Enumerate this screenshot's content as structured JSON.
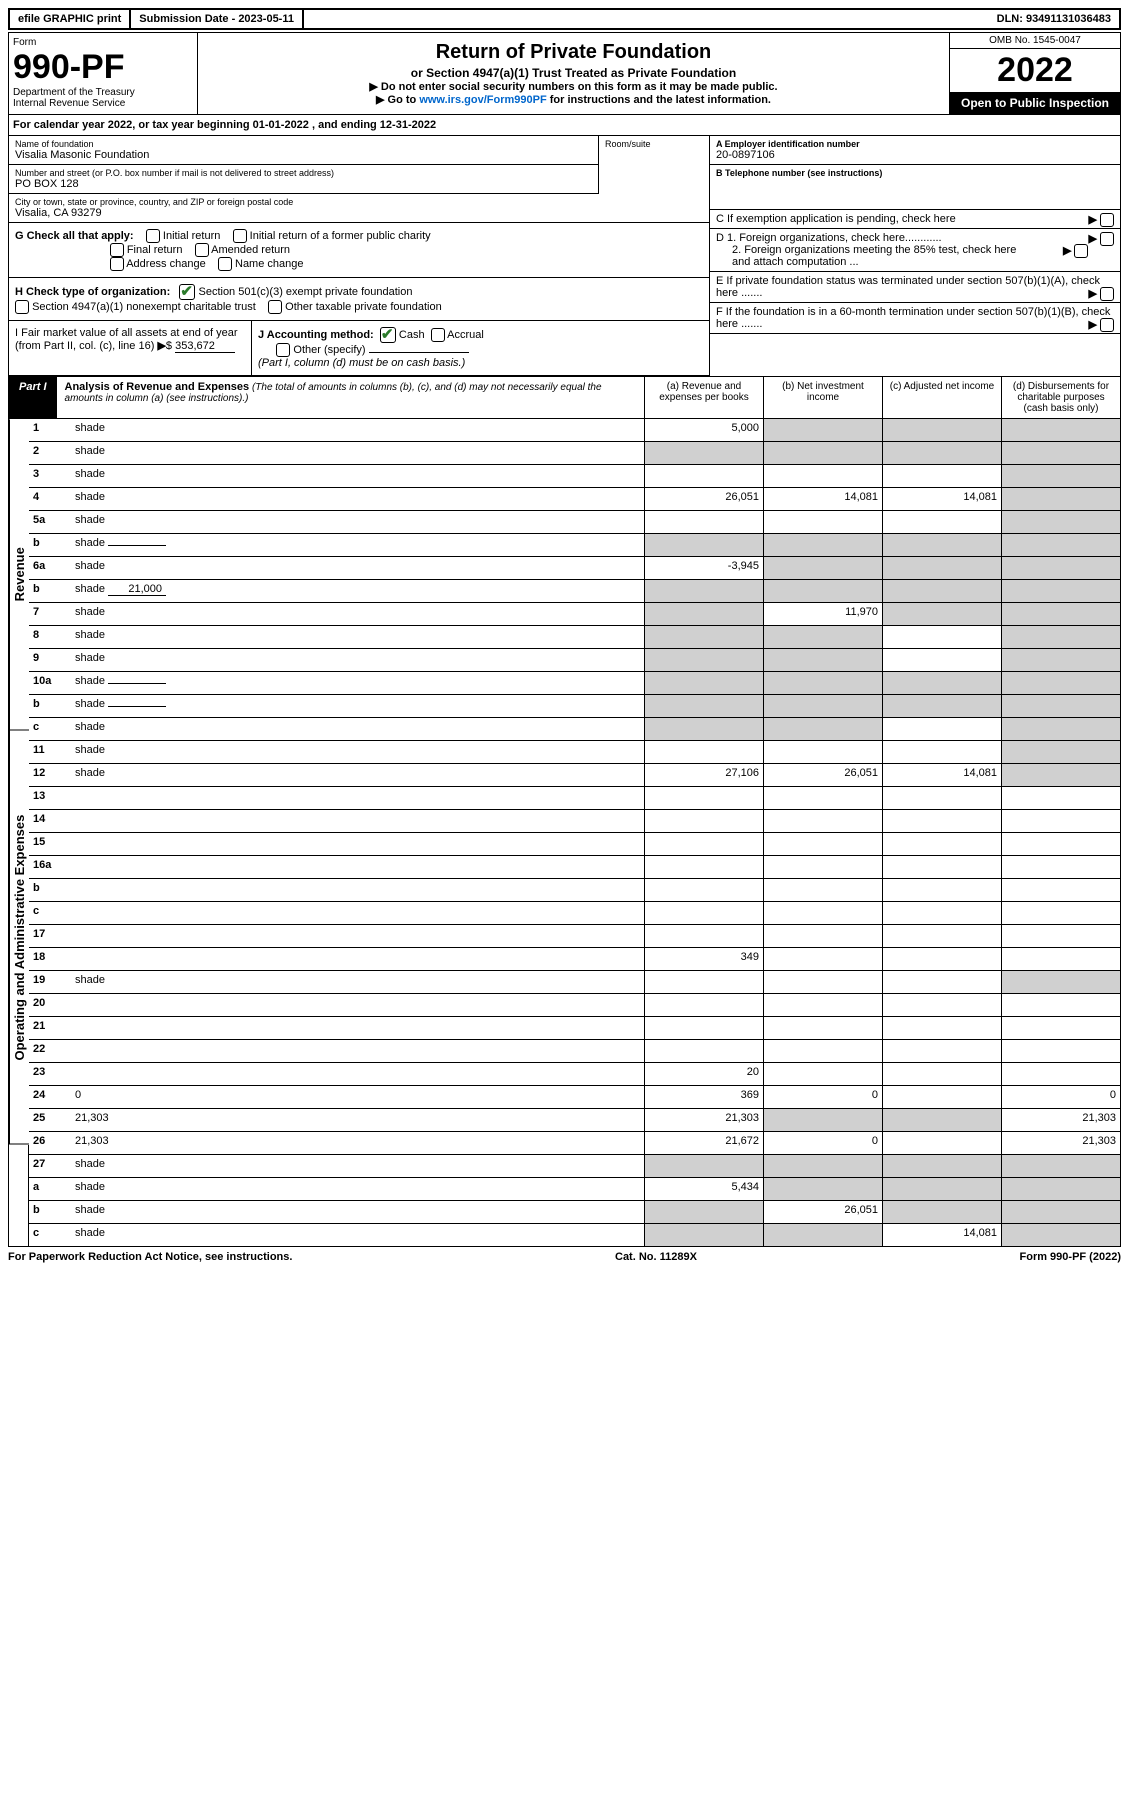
{
  "topbar": {
    "efile": "efile GRAPHIC print",
    "submission": "Submission Date - 2023-05-11",
    "dln": "DLN: 93491131036483"
  },
  "header": {
    "form_label": "Form",
    "form_num": "990-PF",
    "dept": "Department of the Treasury",
    "irs": "Internal Revenue Service",
    "title": "Return of Private Foundation",
    "subtitle": "or Section 4947(a)(1) Trust Treated as Private Foundation",
    "instr1": "▶ Do not enter social security numbers on this form as it may be made public.",
    "instr2": "▶ Go to www.irs.gov/Form990PF for instructions and the latest information.",
    "link": "www.irs.gov/Form990PF",
    "omb": "OMB No. 1545-0047",
    "year": "2022",
    "inspect": "Open to Public Inspection"
  },
  "calyear": "For calendar year 2022, or tax year beginning 01-01-2022                        , and ending 12-31-2022",
  "info": {
    "name_label": "Name of foundation",
    "name": "Visalia Masonic Foundation",
    "addr_label": "Number and street (or P.O. box number if mail is not delivered to street address)",
    "addr": "PO BOX 128",
    "room_label": "Room/suite",
    "city_label": "City or town, state or province, country, and ZIP or foreign postal code",
    "city": "Visalia, CA  93279",
    "a_label": "A Employer identification number",
    "a_val": "20-0897106",
    "b_label": "B Telephone number (see instructions)",
    "c_label": "C If exemption application is pending, check here",
    "d1_label": "D 1. Foreign organizations, check here............",
    "d2_label": "2. Foreign organizations meeting the 85% test, check here and attach computation ...",
    "e_label": "E  If private foundation status was terminated under section 507(b)(1)(A), check here .......",
    "f_label": "F  If the foundation is in a 60-month termination under section 507(b)(1)(B), check here .......",
    "g_label": "G Check all that apply:",
    "g_opts": [
      "Initial return",
      "Initial return of a former public charity",
      "Final return",
      "Amended return",
      "Address change",
      "Name change"
    ],
    "h_label": "H Check type of organization:",
    "h_opt1": "Section 501(c)(3) exempt private foundation",
    "h_opt2": "Section 4947(a)(1) nonexempt charitable trust",
    "h_opt3": "Other taxable private foundation",
    "i_label": "I Fair market value of all assets at end of year (from Part II, col. (c), line 16)",
    "i_val": "353,672",
    "j_label": "J Accounting method:",
    "j_cash": "Cash",
    "j_accrual": "Accrual",
    "j_other": "Other (specify)",
    "j_note": "(Part I, column (d) must be on cash basis.)"
  },
  "part1": {
    "label": "Part I",
    "title": "Analysis of Revenue and Expenses",
    "title_note": "(The total of amounts in columns (b), (c), and (d) may not necessarily equal the amounts in column (a) (see instructions).)",
    "col_a": "(a)   Revenue and expenses per books",
    "col_b": "(b)   Net investment income",
    "col_c": "(c)   Adjusted net income",
    "col_d": "(d)   Disbursements for charitable purposes (cash basis only)"
  },
  "sections": {
    "revenue": "Revenue",
    "expenses": "Operating and Administrative Expenses"
  },
  "rows": [
    {
      "n": "1",
      "d": "shade",
      "a": "5,000",
      "b": "shade",
      "c": "shade"
    },
    {
      "n": "2",
      "d": "shade",
      "a": "shade",
      "b": "shade",
      "c": "shade"
    },
    {
      "n": "3",
      "d": "shade",
      "a": "",
      "b": "",
      "c": ""
    },
    {
      "n": "4",
      "d": "shade",
      "a": "26,051",
      "b": "14,081",
      "c": "14,081"
    },
    {
      "n": "5a",
      "d": "shade",
      "a": "",
      "b": "",
      "c": ""
    },
    {
      "n": "b",
      "d": "shade",
      "inline": "",
      "a": "shade",
      "b": "shade",
      "c": "shade"
    },
    {
      "n": "6a",
      "d": "shade",
      "a": "-3,945",
      "b": "shade",
      "c": "shade"
    },
    {
      "n": "b",
      "d": "shade",
      "inline": "21,000",
      "a": "shade",
      "b": "shade",
      "c": "shade"
    },
    {
      "n": "7",
      "d": "shade",
      "a": "shade",
      "b": "11,970",
      "c": "shade"
    },
    {
      "n": "8",
      "d": "shade",
      "a": "shade",
      "b": "shade",
      "c": ""
    },
    {
      "n": "9",
      "d": "shade",
      "a": "shade",
      "b": "shade",
      "c": ""
    },
    {
      "n": "10a",
      "d": "shade",
      "inline": "",
      "a": "shade",
      "b": "shade",
      "c": "shade"
    },
    {
      "n": "b",
      "d": "shade",
      "inline": "",
      "a": "shade",
      "b": "shade",
      "c": "shade"
    },
    {
      "n": "c",
      "d": "shade",
      "a": "shade",
      "b": "shade",
      "c": ""
    },
    {
      "n": "11",
      "d": "shade",
      "a": "",
      "b": "",
      "c": ""
    },
    {
      "n": "12",
      "d": "shade",
      "a": "27,106",
      "b": "26,051",
      "c": "14,081"
    }
  ],
  "exp_rows": [
    {
      "n": "13",
      "d": "",
      "a": "",
      "b": "",
      "c": ""
    },
    {
      "n": "14",
      "d": "",
      "a": "",
      "b": "",
      "c": ""
    },
    {
      "n": "15",
      "d": "",
      "a": "",
      "b": "",
      "c": ""
    },
    {
      "n": "16a",
      "d": "",
      "a": "",
      "b": "",
      "c": ""
    },
    {
      "n": "b",
      "d": "",
      "a": "",
      "b": "",
      "c": ""
    },
    {
      "n": "c",
      "d": "",
      "a": "",
      "b": "",
      "c": ""
    },
    {
      "n": "17",
      "d": "",
      "a": "",
      "b": "",
      "c": ""
    },
    {
      "n": "18",
      "d": "",
      "a": "349",
      "b": "",
      "c": ""
    },
    {
      "n": "19",
      "d": "shade",
      "a": "",
      "b": "",
      "c": ""
    },
    {
      "n": "20",
      "d": "",
      "a": "",
      "b": "",
      "c": ""
    },
    {
      "n": "21",
      "d": "",
      "a": "",
      "b": "",
      "c": ""
    },
    {
      "n": "22",
      "d": "",
      "a": "",
      "b": "",
      "c": ""
    },
    {
      "n": "23",
      "d": "",
      "a": "20",
      "b": "",
      "c": ""
    },
    {
      "n": "24",
      "d": "0",
      "a": "369",
      "b": "0",
      "c": ""
    },
    {
      "n": "25",
      "d": "21,303",
      "a": "21,303",
      "b": "shade",
      "c": "shade"
    },
    {
      "n": "26",
      "d": "21,303",
      "a": "21,672",
      "b": "0",
      "c": ""
    }
  ],
  "bottom_rows": [
    {
      "n": "27",
      "d": "shade",
      "a": "shade",
      "b": "shade",
      "c": "shade"
    },
    {
      "n": "a",
      "d": "shade",
      "a": "5,434",
      "b": "shade",
      "c": "shade"
    },
    {
      "n": "b",
      "d": "shade",
      "a": "shade",
      "b": "26,051",
      "c": "shade"
    },
    {
      "n": "c",
      "d": "shade",
      "a": "shade",
      "b": "shade",
      "c": "14,081"
    }
  ],
  "footer": {
    "left": "For Paperwork Reduction Act Notice, see instructions.",
    "center": "Cat. No. 11289X",
    "right": "Form 990-PF (2022)"
  }
}
